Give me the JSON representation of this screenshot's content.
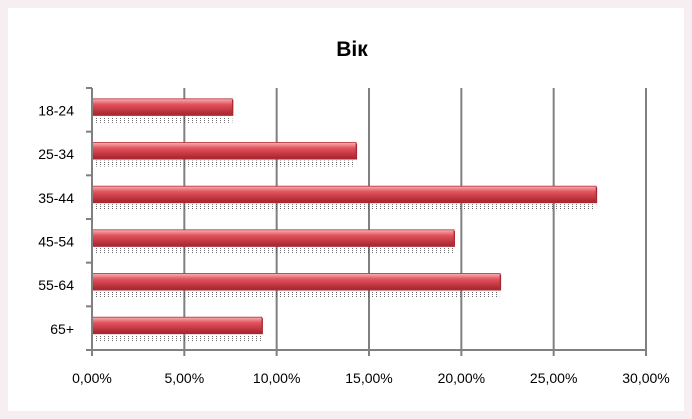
{
  "chart_data": {
    "type": "bar",
    "orientation": "horizontal",
    "title": "Вік",
    "xlabel": "",
    "ylabel": "",
    "categories": [
      "18-24",
      "25-34",
      "35-44",
      "45-54",
      "55-64",
      "65+"
    ],
    "values": [
      7.6,
      14.3,
      27.3,
      19.6,
      22.1,
      9.2
    ],
    "xlim": [
      0,
      30
    ],
    "x_ticks": [
      0,
      5,
      10,
      15,
      20,
      25,
      30
    ],
    "x_tick_labels": [
      "0,00%",
      "5,00%",
      "10,00%",
      "15,00%",
      "20,00%",
      "25,00%",
      "30,00%"
    ],
    "grid": "vertical major gridlines",
    "legend": "none",
    "colors": {
      "bar_fill": "#e0505a",
      "bar_highlight": "#f7a7ab",
      "bar_shadow": "#9e1f2a",
      "grid": "#808080",
      "background": "#f6eef1"
    }
  }
}
